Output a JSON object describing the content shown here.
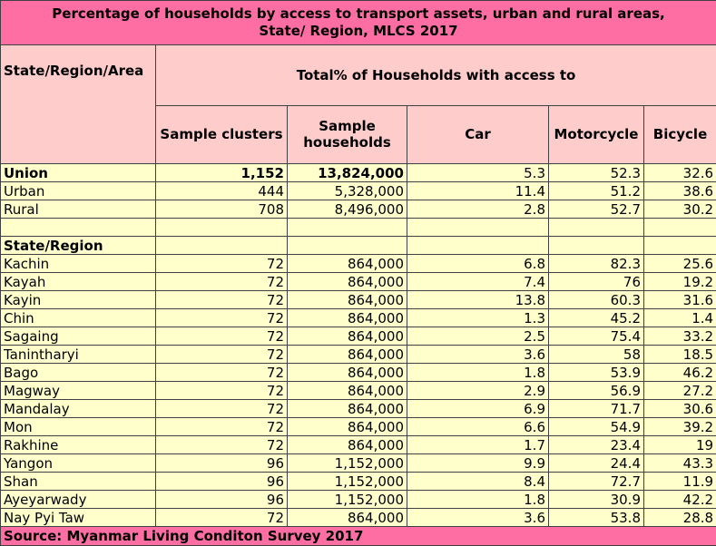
{
  "title": "Percentage of households by access to transport assets, urban and rural areas, State/ Region, MLCS 2017",
  "header": {
    "col_area": "State/Region/Area",
    "group": "Total% of Households with access to",
    "sample_clusters": "Sample clusters",
    "sample_households": "Sample households",
    "car": "Car",
    "motorcycle": "Motorcycle",
    "bicycle": "Bicycle"
  },
  "summary_rows": [
    {
      "area": "Union",
      "clusters": "1,152",
      "households": "13,824,000",
      "car": "5.3",
      "motorcycle": "52.3",
      "bicycle": "32.6"
    },
    {
      "area": "Urban",
      "clusters": "444",
      "households": "5,328,000",
      "car": "11.4",
      "motorcycle": "51.2",
      "bicycle": "38.6"
    },
    {
      "area": "Rural",
      "clusters": "708",
      "households": "8,496,000",
      "car": "2.8",
      "motorcycle": "52.7",
      "bicycle": "30.2"
    }
  ],
  "section_label": "State/Region",
  "region_rows": [
    {
      "area": "Kachin",
      "clusters": "72",
      "households": "864,000",
      "car": "6.8",
      "motorcycle": "82.3",
      "bicycle": "25.6"
    },
    {
      "area": "Kayah",
      "clusters": "72",
      "households": "864,000",
      "car": "7.4",
      "motorcycle": "76",
      "bicycle": "19.2"
    },
    {
      "area": "Kayin",
      "clusters": "72",
      "households": "864,000",
      "car": "13.8",
      "motorcycle": "60.3",
      "bicycle": "31.6"
    },
    {
      "area": "Chin",
      "clusters": "72",
      "households": "864,000",
      "car": "1.3",
      "motorcycle": "45.2",
      "bicycle": "1.4"
    },
    {
      "area": "Sagaing",
      "clusters": "72",
      "households": "864,000",
      "car": "2.5",
      "motorcycle": "75.4",
      "bicycle": "33.2"
    },
    {
      "area": "Tanintharyi",
      "clusters": "72",
      "households": "864,000",
      "car": "3.6",
      "motorcycle": "58",
      "bicycle": "18.5"
    },
    {
      "area": "Bago",
      "clusters": "72",
      "households": "864,000",
      "car": "1.8",
      "motorcycle": "53.9",
      "bicycle": "46.2"
    },
    {
      "area": "Magway",
      "clusters": "72",
      "households": "864,000",
      "car": "2.9",
      "motorcycle": "56.9",
      "bicycle": "27.2"
    },
    {
      "area": "Mandalay",
      "clusters": "72",
      "households": "864,000",
      "car": "6.9",
      "motorcycle": "71.7",
      "bicycle": "30.6"
    },
    {
      "area": "Mon",
      "clusters": "72",
      "households": "864,000",
      "car": "6.6",
      "motorcycle": "54.9",
      "bicycle": "39.2"
    },
    {
      "area": "Rakhine",
      "clusters": "72",
      "households": "864,000",
      "car": "1.7",
      "motorcycle": "23.4",
      "bicycle": "19"
    },
    {
      "area": "Yangon",
      "clusters": "96",
      "households": "1,152,000",
      "car": "9.9",
      "motorcycle": "24.4",
      "bicycle": "43.3"
    },
    {
      "area": "Shan",
      "clusters": "96",
      "households": "1,152,000",
      "car": "8.4",
      "motorcycle": "72.7",
      "bicycle": "11.9"
    },
    {
      "area": "Ayeyarwady",
      "clusters": "96",
      "households": "1,152,000",
      "car": "1.8",
      "motorcycle": "30.9",
      "bicycle": "42.2"
    },
    {
      "area": "Nay Pyi Taw",
      "clusters": "72",
      "households": "864,000",
      "car": "3.6",
      "motorcycle": "53.8",
      "bicycle": "28.8"
    }
  ],
  "source": "Source: Myanmar Living Conditon Survey 2017"
}
